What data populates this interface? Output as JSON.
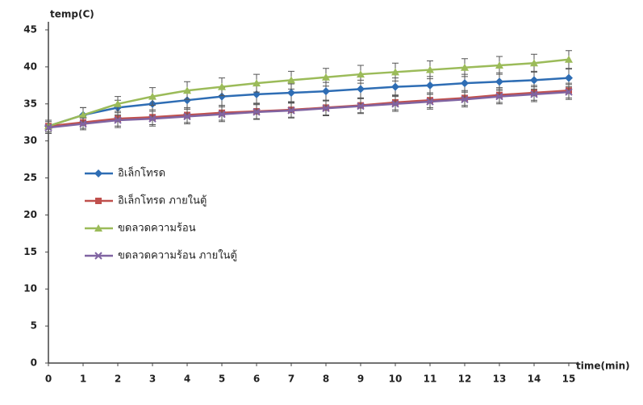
{
  "chart_data": {
    "type": "line",
    "y_label": "temp(C)",
    "x_label": "time(min)",
    "x": [
      0,
      1,
      2,
      3,
      4,
      5,
      6,
      7,
      8,
      9,
      10,
      11,
      12,
      13,
      14,
      15
    ],
    "xlim": [
      0,
      15
    ],
    "xticks": [
      0,
      1,
      2,
      3,
      4,
      5,
      6,
      7,
      8,
      9,
      10,
      11,
      12,
      13,
      14,
      15
    ],
    "ylim": [
      0,
      45
    ],
    "yticks": [
      0,
      5,
      10,
      15,
      20,
      25,
      30,
      35,
      40,
      45
    ],
    "grid": false,
    "legend": "left",
    "series": [
      {
        "name": "อิเล็กโทรด",
        "color": "#2e6db4",
        "marker": "diamond",
        "values": [
          32,
          33.5,
          34.5,
          35,
          35.5,
          36,
          36.3,
          36.5,
          36.7,
          37,
          37.3,
          37.5,
          37.8,
          38,
          38.2,
          38.5
        ],
        "errors": [
          0.8,
          1,
          1,
          1,
          1.2,
          1.2,
          1.2,
          1.2,
          1.2,
          1.2,
          1.2,
          1.2,
          1.2,
          1.2,
          1.2,
          1.2
        ]
      },
      {
        "name": "อิเล็กโทรด ภายในตู้",
        "color": "#c0504d",
        "marker": "square",
        "values": [
          32,
          32.5,
          33,
          33.2,
          33.5,
          33.8,
          34,
          34.2,
          34.5,
          34.8,
          35.2,
          35.5,
          35.8,
          36.2,
          36.5,
          36.8
        ],
        "errors": [
          0.8,
          0.8,
          1,
          1,
          1,
          1,
          1,
          1,
          1,
          1,
          1,
          1,
          1,
          1,
          1,
          1
        ]
      },
      {
        "name": "ขดลวดความร้อน",
        "color": "#9bbb59",
        "marker": "triangle",
        "values": [
          32,
          33.5,
          35,
          36,
          36.8,
          37.3,
          37.8,
          38.2,
          38.6,
          39,
          39.3,
          39.6,
          39.9,
          40.2,
          40.5,
          41
        ],
        "errors": [
          0.8,
          1,
          1,
          1.2,
          1.2,
          1.2,
          1.2,
          1.2,
          1.2,
          1.2,
          1.2,
          1.2,
          1.2,
          1.2,
          1.2,
          1.2
        ]
      },
      {
        "name": "ขดลวดความร้อน ภายในตู้",
        "color": "#8064a2",
        "marker": "x",
        "values": [
          31.8,
          32.3,
          32.8,
          33,
          33.3,
          33.6,
          33.9,
          34.1,
          34.4,
          34.7,
          35,
          35.3,
          35.6,
          36,
          36.3,
          36.6
        ],
        "errors": [
          0.8,
          0.8,
          1,
          1,
          1,
          1,
          1,
          1,
          1,
          1,
          1,
          1,
          1,
          1,
          1,
          1
        ]
      }
    ]
  }
}
